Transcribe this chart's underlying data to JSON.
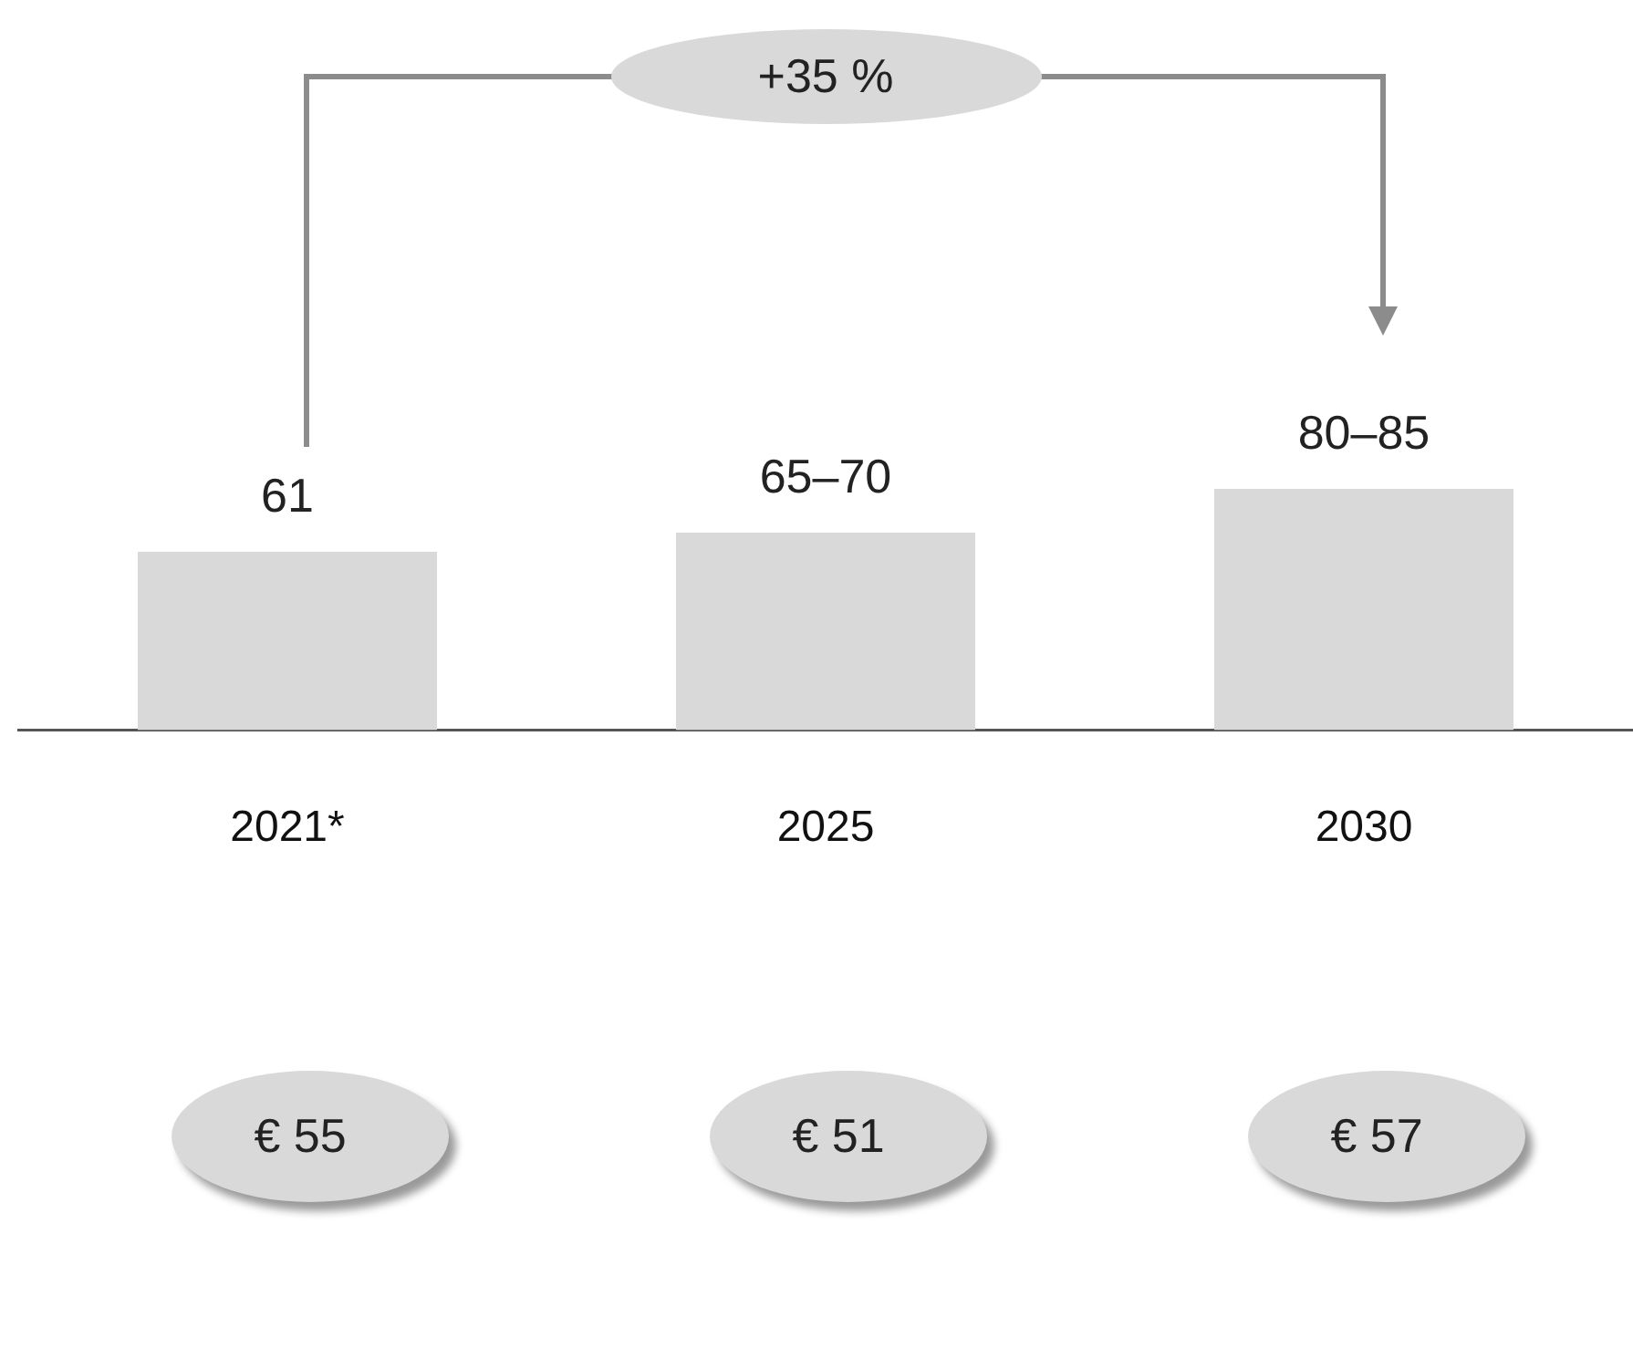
{
  "chart_data": {
    "type": "bar",
    "categories": [
      "2021*",
      "2025",
      "2030"
    ],
    "series": [
      {
        "color": "#d9d9d9",
        "values": [
          61,
          67.5,
          82.5
        ],
        "value_labels": [
          "61",
          "65–70",
          "80–85"
        ]
      }
    ],
    "ylim": [
      0,
      82.5
    ],
    "annotations": [
      "+35 %",
      "€ 55",
      "€ 51",
      "€ 57"
    ],
    "grid": false,
    "legend": false,
    "tick_labels": "x"
  }
}
